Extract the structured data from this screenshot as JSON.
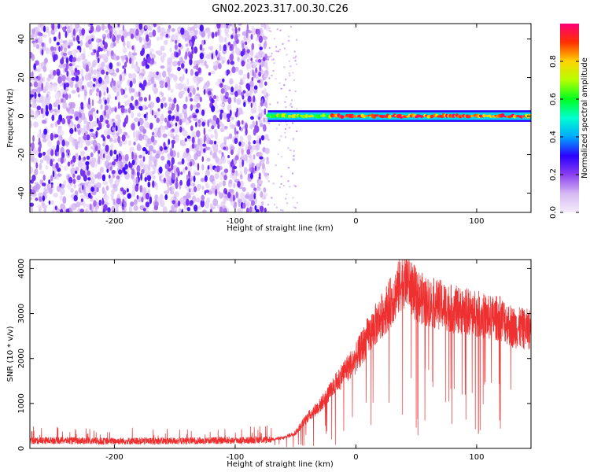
{
  "title": "GN02.2023.317.00.30.C26",
  "chart_data": [
    {
      "type": "heatmap",
      "xlabel": "Height of straight line (km)",
      "ylabel": "Frequency (Hz)",
      "xlim": [
        -270,
        145
      ],
      "ylim": [
        -50,
        48
      ],
      "xticks": [
        -200,
        -100,
        0,
        100
      ],
      "yticks": [
        -40,
        -20,
        0,
        20,
        40
      ],
      "grid": false,
      "colorbar": {
        "label": "Normalized spectral amplitude",
        "range": [
          0,
          1
        ],
        "ticks": [
          "0.0",
          "0.2",
          "0.4",
          "0.6",
          "0.8"
        ],
        "colors": [
          "#f4ecfb",
          "#d6b8f3",
          "#8a3ff0",
          "#2b00ff",
          "#00a8ff",
          "#00ffd0",
          "#00ff20",
          "#b4ff00",
          "#ffd400",
          "#ff3000",
          "#ff0078"
        ]
      },
      "features": [
        {
          "region": "x < -73 km",
          "description": "broadband noise, amplitude ~0.05–0.2 across all frequencies"
        },
        {
          "region": "x > -73 km",
          "description": "narrow tone near 0 Hz, amplitude ~0.8–1.0, width ~±3 Hz"
        }
      ]
    },
    {
      "type": "line",
      "xlabel": "Height of straight line (km)",
      "ylabel": "SNR (10 * v/v)",
      "xlim": [
        -270,
        145
      ],
      "ylim": [
        0,
        4200
      ],
      "xticks": [
        -200,
        -100,
        0,
        100
      ],
      "yticks": [
        0,
        1000,
        2000,
        3000,
        4000
      ],
      "grid": false,
      "series": [
        {
          "color": "#ee3030",
          "points": [
            [
              -270,
              170
            ],
            [
              -250,
              180
            ],
            [
              -230,
              170
            ],
            [
              -210,
              160
            ],
            [
              -190,
              165
            ],
            [
              -170,
              165
            ],
            [
              -150,
              165
            ],
            [
              -130,
              170
            ],
            [
              -110,
              175
            ],
            [
              -90,
              180
            ],
            [
              -75,
              190
            ],
            [
              -60,
              230
            ],
            [
              -50,
              350
            ],
            [
              -40,
              700
            ],
            [
              -30,
              950
            ],
            [
              -20,
              1300
            ],
            [
              -10,
              1700
            ],
            [
              0,
              2000
            ],
            [
              10,
              2500
            ],
            [
              20,
              2900
            ],
            [
              30,
              3300
            ],
            [
              38,
              3700
            ],
            [
              42,
              3800
            ],
            [
              50,
              3400
            ],
            [
              60,
              3250
            ],
            [
              70,
              3200
            ],
            [
              80,
              3100
            ],
            [
              90,
              3050
            ],
            [
              100,
              3000
            ],
            [
              110,
              2900
            ],
            [
              120,
              2900
            ],
            [
              130,
              2700
            ],
            [
              140,
              2650
            ],
            [
              145,
              2650
            ]
          ]
        }
      ]
    }
  ]
}
